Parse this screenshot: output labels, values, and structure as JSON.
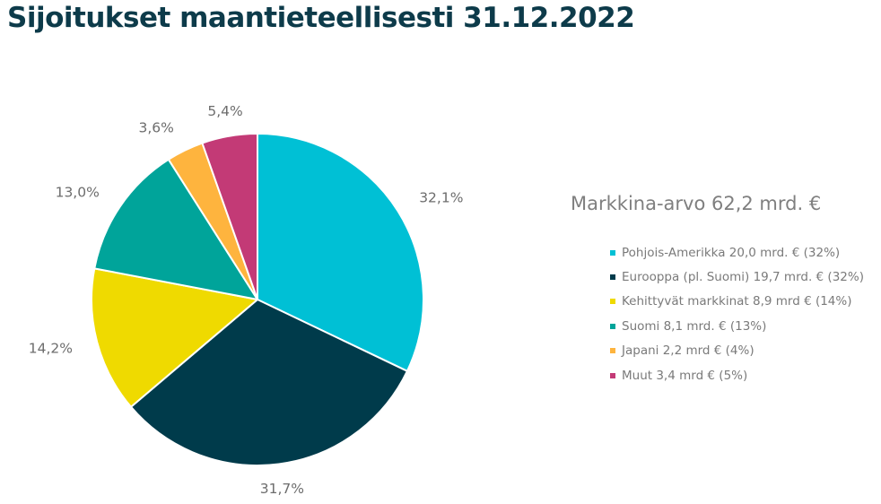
{
  "title": "Sijoitukset maantieteellisesti 31.12.2022",
  "chart_data": {
    "type": "pie",
    "title": "Sijoitukset maantieteellisesti 31.12.2022",
    "legend_title": "Markkina-arvo 62,2 mrd. €",
    "legend_position": "right",
    "slices": [
      {
        "label": "Pohjois-Amerikka 20,0 mrd. € (32%)",
        "value": 32.1,
        "display": "32,1%",
        "color": "#00c0d5"
      },
      {
        "label": "Eurooppa (pl. Suomi) 19,7 mrd. € (32%)",
        "value": 31.7,
        "display": "31,7%",
        "color": "#003b4b"
      },
      {
        "label": "Kehittyvät markkinat 8,9 mrd € (14%)",
        "value": 14.2,
        "display": "14,2%",
        "color": "#efda00"
      },
      {
        "label": "Suomi 8,1 mrd. € (13%)",
        "value": 13.0,
        "display": "13,0%",
        "color": "#00a49a"
      },
      {
        "label": "Japani 2,2 mrd € (4%)",
        "value": 3.6,
        "display": "3,6%",
        "color": "#feb43e"
      },
      {
        "label": "Muut 3,4 mrd € (5%)",
        "value": 5.4,
        "display": "5,4%",
        "color": "#c33a76"
      }
    ]
  }
}
